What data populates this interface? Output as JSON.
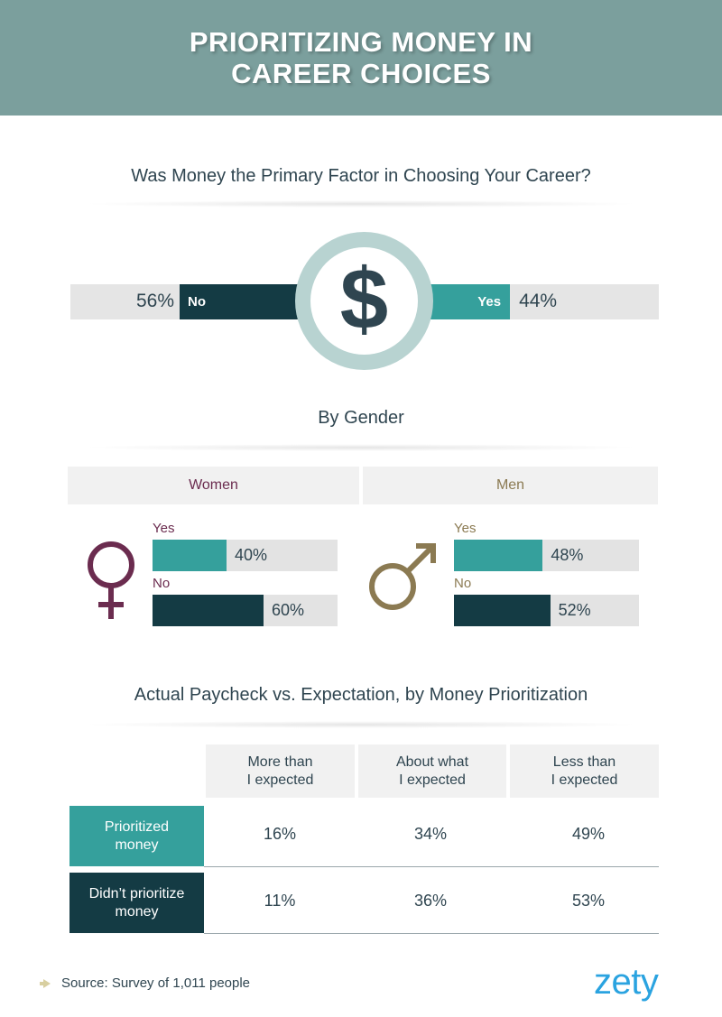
{
  "header": {
    "title": "PRIORITIZING MONEY IN CAREER CHOICES"
  },
  "section1": {
    "title": "Was Money the Primary Factor in Choosing Your Career?",
    "icon": "dollar-icon",
    "symbol": "$"
  },
  "section2": {
    "title": "By Gender"
  },
  "section3": {
    "title": "Actual Paycheck vs. Expectation, by Money Prioritization"
  },
  "colors": {
    "teal": "#35a09c",
    "dark": "#143b44",
    "women": "#6b2c4f",
    "men": "#8b7a52",
    "header_bg": "#7b9f9d"
  },
  "chart_data": [
    {
      "type": "bar",
      "title": "Was Money the Primary Factor in Choosing Your Career?",
      "categories": [
        "No",
        "Yes"
      ],
      "values": [
        56,
        44
      ],
      "labels": [
        "56%",
        "44%"
      ],
      "ylim": [
        0,
        100
      ]
    },
    {
      "type": "bar",
      "title": "By Gender",
      "groups": [
        {
          "name": "Women",
          "icon": "female-symbol-icon",
          "items": [
            {
              "label": "Yes",
              "value": 40,
              "text": "40%"
            },
            {
              "label": "No",
              "value": 60,
              "text": "60%"
            }
          ]
        },
        {
          "name": "Men",
          "icon": "male-symbol-icon",
          "items": [
            {
              "label": "Yes",
              "value": 48,
              "text": "48%"
            },
            {
              "label": "No",
              "value": 52,
              "text": "52%"
            }
          ]
        }
      ],
      "ylim": [
        0,
        100
      ]
    },
    {
      "type": "table",
      "title": "Actual Paycheck vs. Expectation, by Money Prioritization",
      "columns": [
        [
          "More than",
          "I expected"
        ],
        [
          "About what",
          "I expected"
        ],
        [
          "Less than",
          "I expected"
        ]
      ],
      "rows": [
        {
          "name": [
            "Prioritized",
            "money"
          ],
          "values": [
            "16%",
            "34%",
            "49%"
          ]
        },
        {
          "name": [
            "Didn’t prioritize",
            "money"
          ],
          "values": [
            "11%",
            "36%",
            "53%"
          ]
        }
      ]
    }
  ],
  "footer": {
    "source": "Source: Survey of 1,011 people",
    "logo": "zety"
  }
}
